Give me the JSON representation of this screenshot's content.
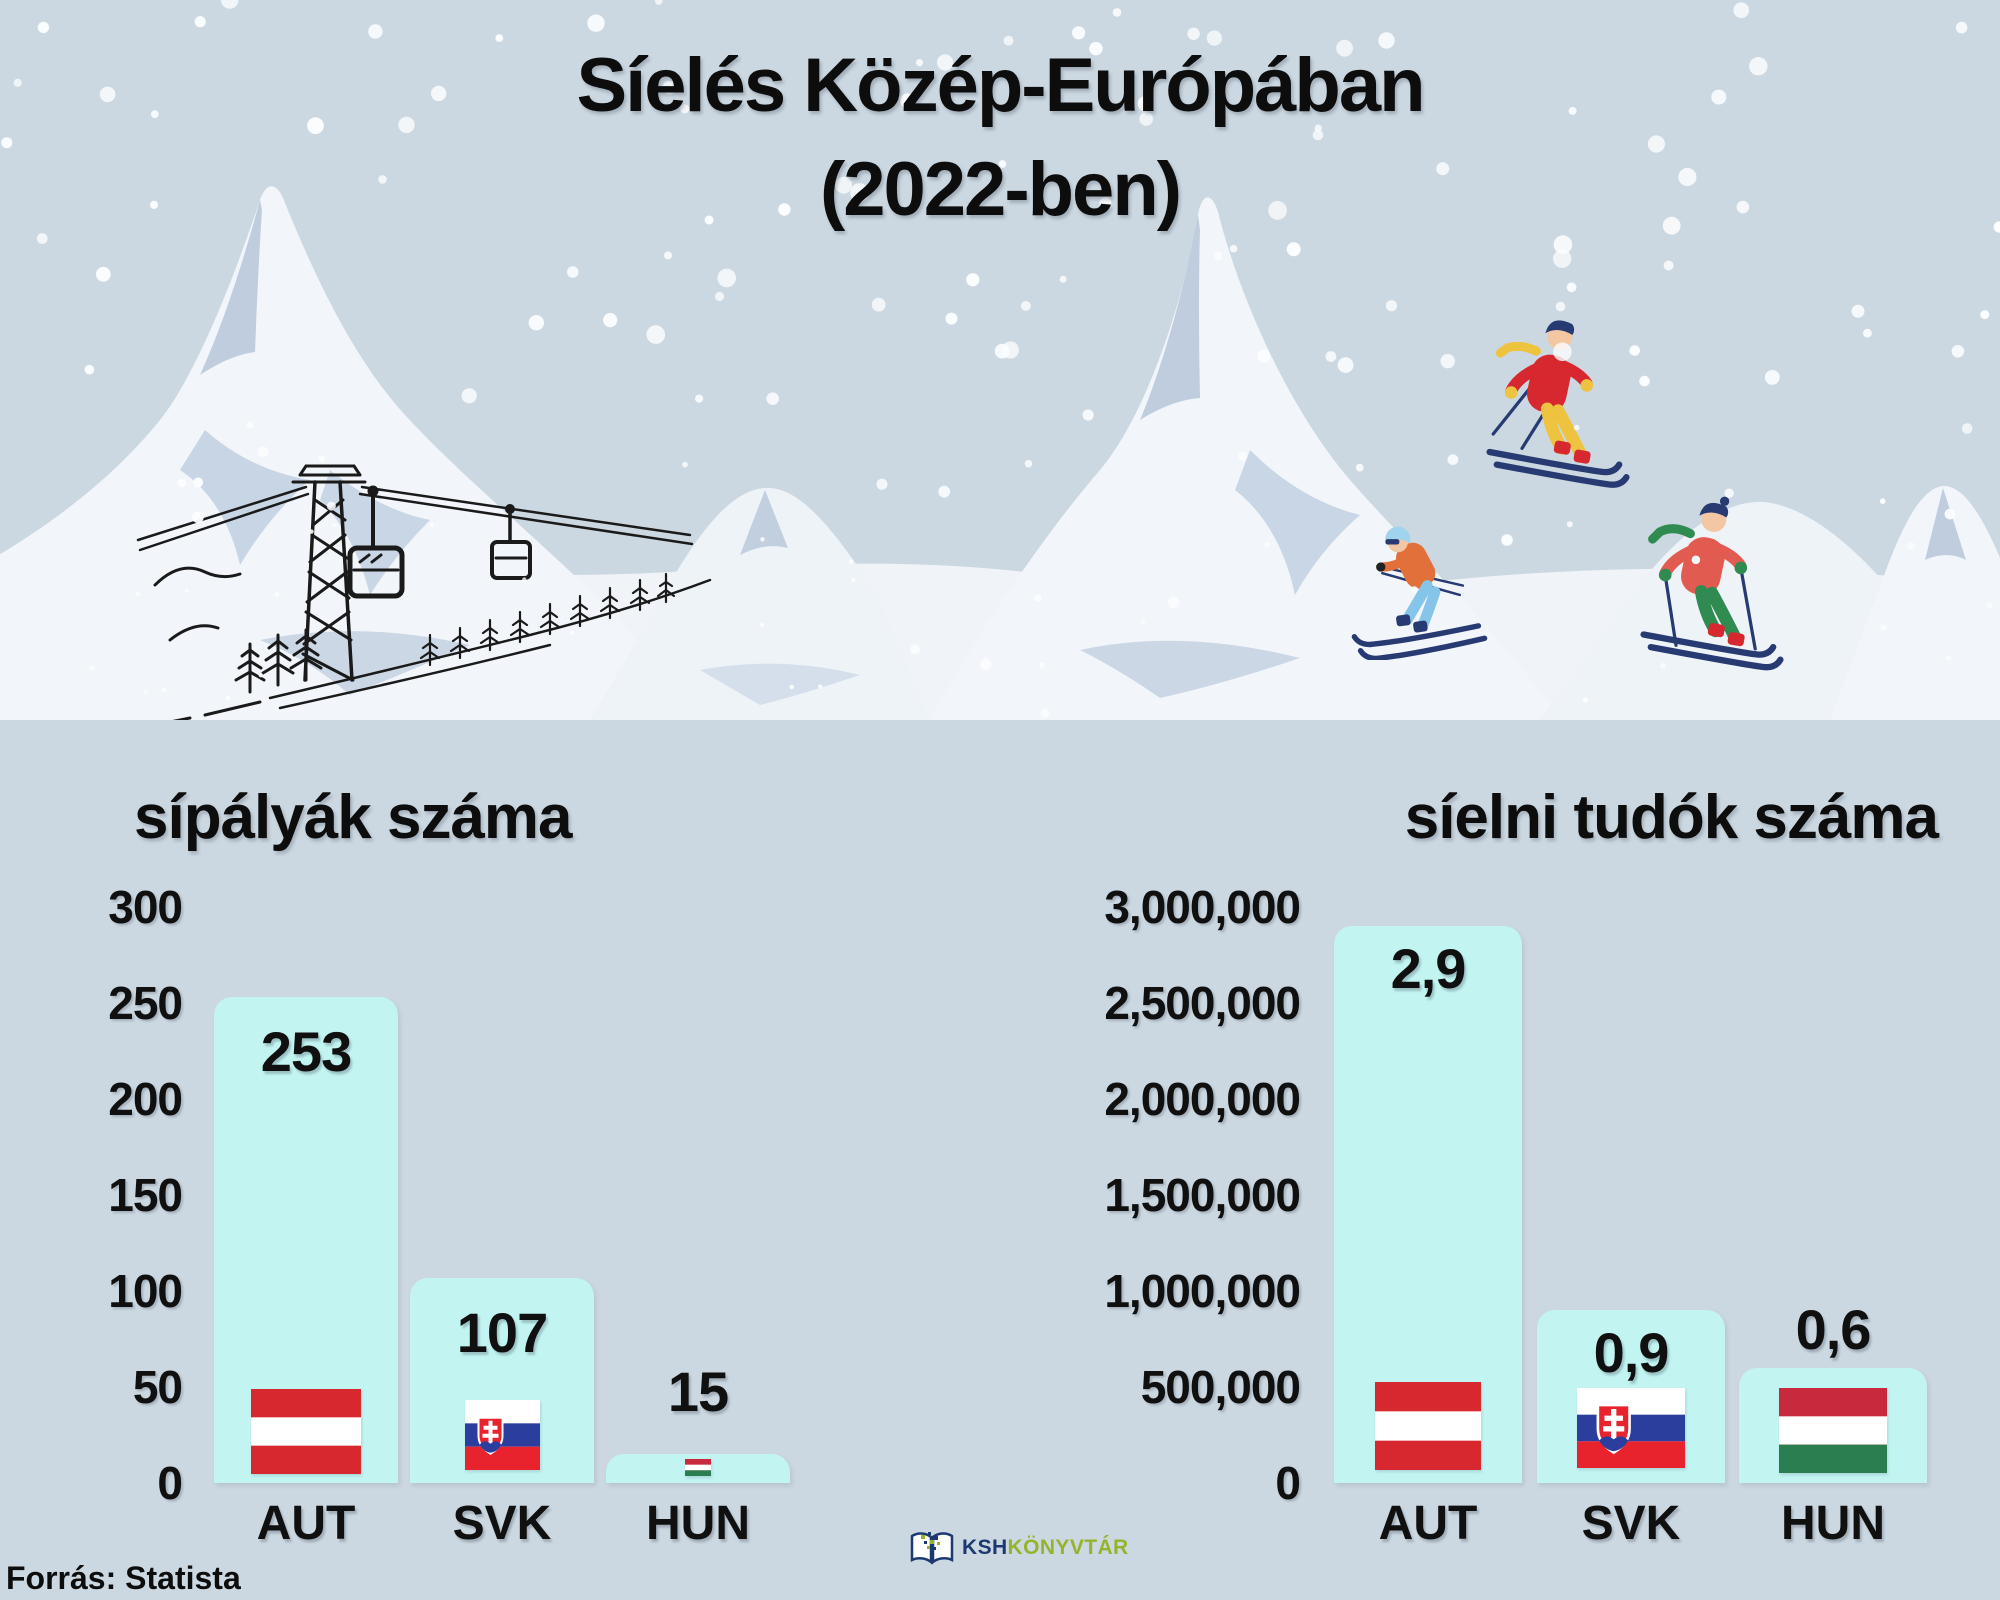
{
  "title": {
    "line1": "Síelés Közép-Európában",
    "line2": "(2022-ben)"
  },
  "chart_data": [
    {
      "type": "bar",
      "title": "sípályák száma",
      "categories": [
        "AUT",
        "SVK",
        "HUN"
      ],
      "values": [
        253,
        107,
        15
      ],
      "value_labels": [
        "253",
        "107",
        "15"
      ],
      "y_ticks": [
        "300",
        "250",
        "200",
        "150",
        "100",
        "50",
        "0"
      ],
      "ylim": [
        0,
        300
      ],
      "grid": false,
      "legend": "none",
      "flags": [
        "austria",
        "slovakia",
        "hungary"
      ],
      "bar_color": "#c2f5f2"
    },
    {
      "type": "bar",
      "title": "síelni tudók száma",
      "categories": [
        "AUT",
        "SVK",
        "HUN"
      ],
      "values": [
        2900000,
        900000,
        600000
      ],
      "value_labels": [
        "2,9",
        "0,9",
        "0,6"
      ],
      "y_ticks": [
        "3,000,000",
        "2,500,000",
        "2,000,000",
        "1,500,000",
        "1,000,000",
        "500,000",
        "0"
      ],
      "ylim": [
        0,
        3000000
      ],
      "grid": false,
      "legend": "none",
      "flags": [
        "austria",
        "slovakia",
        "hungary"
      ],
      "bar_color": "#c2f5f2"
    }
  ],
  "source": {
    "label": "Forrás: Statista"
  },
  "logo": {
    "text_primary": "KSH",
    "text_secondary": "KÖNYVTÁR"
  },
  "icons": {
    "logo_book": "open-book-icon",
    "ski_lift": "ski-lift-sketch-icon",
    "skiers": [
      "skier-red-yellow-icon",
      "skier-orange-blue-icon",
      "skier-red-green-icon"
    ]
  },
  "colors": {
    "background": "#ccd8e1",
    "bar": "#c2f5f2",
    "text": "#0d0d0d",
    "snow": "#f1f5fa",
    "mountain_shadow": "#b6c5d8",
    "austria_red": "#d7282f",
    "slovakia_blue": "#2b3e9e",
    "slovakia_red": "#e8232e",
    "hungary_red": "#c8293c",
    "hungary_green": "#2a7e4f",
    "logo_navy": "#1d3a70",
    "logo_green": "#96b32c"
  }
}
